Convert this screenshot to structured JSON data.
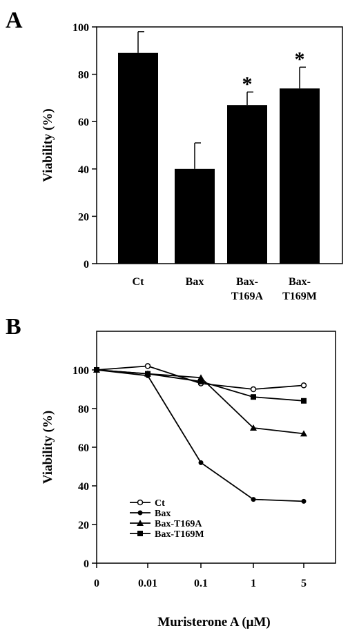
{
  "figure": {
    "panels": [
      {
        "letter": "A"
      },
      {
        "letter": "B"
      }
    ]
  },
  "chart_data": [
    {
      "panel": "A",
      "type": "bar",
      "categories": [
        [
          "Ct"
        ],
        [
          "Bax"
        ],
        [
          "Bax-",
          "T169A"
        ],
        [
          "Bax-",
          "T169M"
        ]
      ],
      "values": [
        89,
        40,
        67,
        74
      ],
      "errors": [
        9,
        11,
        5.5,
        9
      ],
      "significance": [
        "",
        "",
        "*",
        "*"
      ],
      "bar_color": "#000000",
      "ylabel": "Viability (%)",
      "xlabel": "",
      "ylim": [
        0,
        100
      ],
      "yticks": [
        0,
        20,
        40,
        60,
        80,
        100
      ],
      "grid": false
    },
    {
      "panel": "B",
      "type": "line",
      "x": [
        "0",
        "0.01",
        "0.1",
        "1",
        "5"
      ],
      "series": [
        {
          "name": "Ct",
          "marker": "open-circle",
          "values": [
            100,
            102,
            93,
            90,
            92
          ]
        },
        {
          "name": "Bax",
          "marker": "filled-circle",
          "values": [
            100,
            97,
            52,
            33,
            32
          ]
        },
        {
          "name": "Bax-T169A",
          "marker": "filled-triangle",
          "values": [
            100,
            98,
            96,
            70,
            67
          ]
        },
        {
          "name": "Bax-T169M",
          "marker": "filled-square",
          "values": [
            100,
            98,
            94,
            86,
            84
          ]
        }
      ],
      "ylabel": "Viability (%)",
      "xlabel": "Muristerone A (μM)",
      "ylim": [
        0,
        120
      ],
      "yticks": [
        0,
        20,
        40,
        60,
        80,
        100
      ],
      "legend_position": "bottom-left",
      "grid": false
    }
  ]
}
